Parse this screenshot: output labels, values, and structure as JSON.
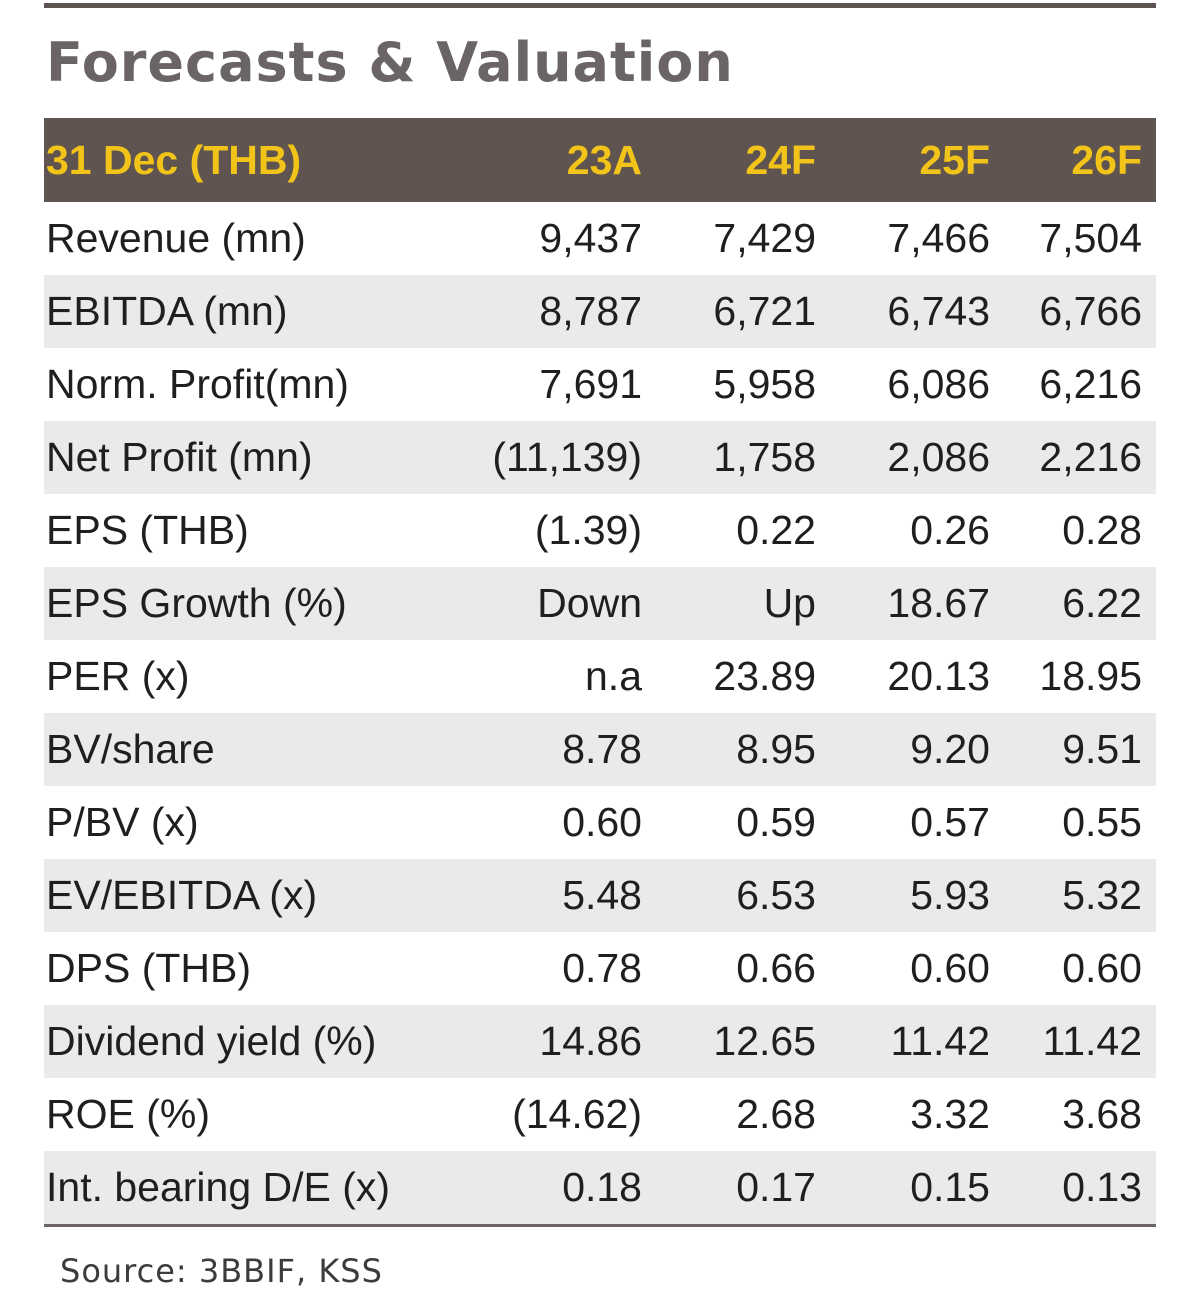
{
  "title": "Forecasts & Valuation",
  "table": {
    "header": {
      "label": "31 Dec (THB)",
      "years": [
        "23A",
        "24F",
        "25F",
        "26F"
      ]
    },
    "rows": [
      {
        "label": "Revenue (mn)",
        "values": [
          "9,437",
          "7,429",
          "7,466",
          "7,504"
        ]
      },
      {
        "label": "EBITDA (mn)",
        "values": [
          "8,787",
          "6,721",
          "6,743",
          "6,766"
        ]
      },
      {
        "label": "Norm. Profit(mn)",
        "values": [
          "7,691",
          "5,958",
          "6,086",
          "6,216"
        ]
      },
      {
        "label": "Net Profit (mn)",
        "values": [
          "(11,139)",
          "1,758",
          "2,086",
          "2,216"
        ]
      },
      {
        "label": "EPS (THB)",
        "values": [
          "(1.39)",
          "0.22",
          "0.26",
          "0.28"
        ]
      },
      {
        "label": "EPS Growth (%)",
        "values": [
          "Down",
          "Up",
          "18.67",
          "6.22"
        ]
      },
      {
        "label": "PER (x)",
        "values": [
          "n.a",
          "23.89",
          "20.13",
          "18.95"
        ]
      },
      {
        "label": "BV/share",
        "values": [
          "8.78",
          "8.95",
          "9.20",
          "9.51"
        ]
      },
      {
        "label": "P/BV (x)",
        "values": [
          "0.60",
          "0.59",
          "0.57",
          "0.55"
        ]
      },
      {
        "label": "EV/EBITDA (x)",
        "values": [
          "5.48",
          "6.53",
          "5.93",
          "5.32"
        ]
      },
      {
        "label": "DPS (THB)",
        "values": [
          "0.78",
          "0.66",
          "0.60",
          "0.60"
        ]
      },
      {
        "label": "Dividend yield (%)",
        "values": [
          "14.86",
          "12.65",
          "11.42",
          "11.42"
        ]
      },
      {
        "label": "ROE (%)",
        "values": [
          "(14.62)",
          "2.68",
          "3.32",
          "3.68"
        ]
      },
      {
        "label": "Int. bearing D/E (x)",
        "values": [
          "0.18",
          "0.17",
          "0.15",
          "0.13"
        ]
      }
    ]
  },
  "source": "Source: 3BBIF, KSS",
  "colors": {
    "header_bg": "#5f5450",
    "header_text": "#f2c318",
    "shaded_row": "#eaeaea",
    "title_text": "#6a6564"
  }
}
